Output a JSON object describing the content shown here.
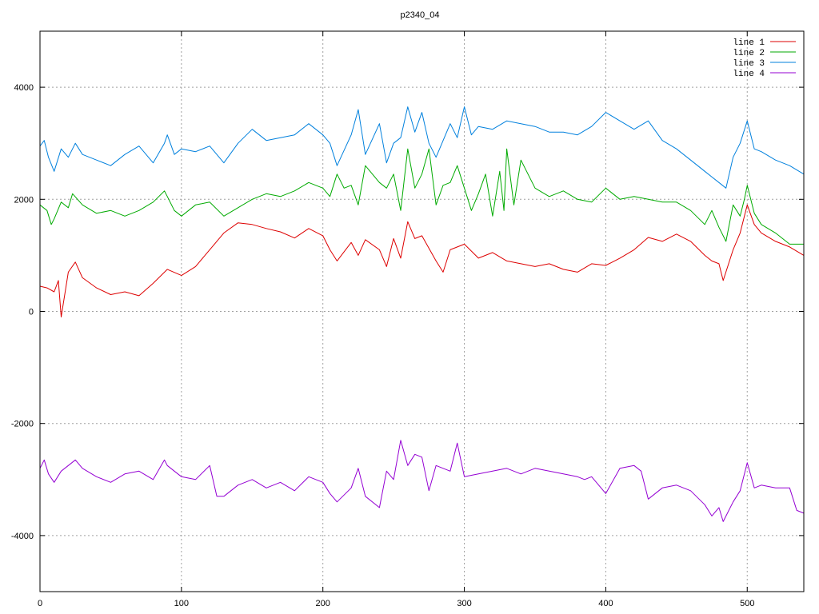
{
  "chart_data": {
    "type": "line",
    "title": "p2340_04",
    "xlabel": "",
    "ylabel": "",
    "xlim": [
      0,
      540
    ],
    "ylim": [
      -5000,
      5000
    ],
    "x_ticks": [
      0,
      100,
      200,
      300,
      400,
      500
    ],
    "y_ticks": [
      -4000,
      -2000,
      0,
      2000,
      4000
    ],
    "grid": true,
    "legend_position": "top-right",
    "series": [
      {
        "name": "line 1",
        "color": "#dd0000",
        "x": [
          0,
          5,
          10,
          13,
          15,
          20,
          25,
          30,
          40,
          50,
          60,
          70,
          80,
          90,
          100,
          110,
          120,
          130,
          140,
          150,
          160,
          170,
          180,
          190,
          200,
          205,
          210,
          220,
          225,
          230,
          240,
          245,
          250,
          255,
          260,
          265,
          270,
          280,
          285,
          290,
          300,
          310,
          320,
          330,
          340,
          350,
          360,
          370,
          380,
          390,
          400,
          410,
          420,
          430,
          440,
          450,
          460,
          470,
          475,
          480,
          483,
          490,
          495,
          500,
          505,
          510,
          520,
          530,
          540
        ],
        "values": [
          450,
          420,
          350,
          550,
          -100,
          700,
          880,
          600,
          420,
          300,
          350,
          280,
          500,
          750,
          640,
          800,
          1100,
          1400,
          1580,
          1550,
          1480,
          1420,
          1310,
          1480,
          1350,
          1100,
          900,
          1230,
          1000,
          1280,
          1100,
          800,
          1300,
          950,
          1600,
          1300,
          1350,
          900,
          700,
          1100,
          1200,
          950,
          1050,
          900,
          850,
          800,
          850,
          750,
          700,
          850,
          820,
          950,
          1100,
          1320,
          1250,
          1380,
          1250,
          1000,
          900,
          850,
          550,
          1100,
          1400,
          1900,
          1550,
          1400,
          1250,
          1150,
          1000
        ]
      },
      {
        "name": "line 2",
        "color": "#00aa00",
        "x": [
          0,
          5,
          8,
          10,
          15,
          20,
          23,
          30,
          40,
          50,
          60,
          70,
          80,
          88,
          90,
          95,
          100,
          110,
          120,
          130,
          140,
          150,
          160,
          170,
          180,
          190,
          200,
          205,
          210,
          215,
          220,
          225,
          230,
          240,
          245,
          250,
          255,
          260,
          265,
          270,
          275,
          280,
          285,
          290,
          295,
          300,
          305,
          310,
          315,
          320,
          325,
          328,
          330,
          335,
          340,
          350,
          360,
          370,
          380,
          390,
          400,
          410,
          420,
          430,
          440,
          450,
          460,
          470,
          475,
          480,
          485,
          490,
          495,
          498,
          500,
          505,
          510,
          520,
          530,
          540
        ],
        "values": [
          1900,
          1800,
          1550,
          1650,
          1950,
          1850,
          2100,
          1900,
          1750,
          1800,
          1700,
          1800,
          1950,
          2150,
          2050,
          1800,
          1700,
          1900,
          1950,
          1700,
          1850,
          2000,
          2100,
          2050,
          2150,
          2300,
          2200,
          2050,
          2450,
          2200,
          2250,
          1900,
          2600,
          2300,
          2200,
          2450,
          1800,
          2900,
          2200,
          2450,
          2900,
          1900,
          2250,
          2300,
          2600,
          2200,
          1800,
          2100,
          2450,
          1700,
          2500,
          1800,
          2900,
          1900,
          2700,
          2200,
          2050,
          2150,
          2000,
          1950,
          2200,
          2000,
          2050,
          2000,
          1950,
          1950,
          1800,
          1550,
          1800,
          1500,
          1250,
          1900,
          1700,
          2000,
          2250,
          1750,
          1550,
          1400,
          1200,
          1200
        ]
      },
      {
        "name": "line 3",
        "color": "#0080dd",
        "x": [
          0,
          3,
          6,
          10,
          15,
          20,
          25,
          30,
          40,
          50,
          60,
          70,
          80,
          88,
          90,
          95,
          100,
          110,
          120,
          130,
          140,
          150,
          160,
          170,
          180,
          190,
          200,
          205,
          210,
          220,
          225,
          230,
          240,
          245,
          250,
          255,
          260,
          265,
          270,
          275,
          280,
          290,
          295,
          300,
          305,
          310,
          320,
          330,
          340,
          350,
          360,
          370,
          380,
          390,
          400,
          410,
          420,
          430,
          440,
          450,
          460,
          470,
          480,
          485,
          490,
          495,
          500,
          505,
          510,
          520,
          530,
          540
        ],
        "values": [
          2950,
          3050,
          2750,
          2500,
          2900,
          2750,
          3000,
          2800,
          2700,
          2600,
          2800,
          2950,
          2650,
          3000,
          3150,
          2800,
          2900,
          2850,
          2950,
          2650,
          3000,
          3250,
          3050,
          3100,
          3150,
          3350,
          3150,
          3000,
          2600,
          3150,
          3600,
          2800,
          3350,
          2650,
          3000,
          3100,
          3650,
          3200,
          3550,
          3000,
          2750,
          3350,
          3100,
          3650,
          3150,
          3300,
          3250,
          3400,
          3350,
          3300,
          3200,
          3200,
          3150,
          3300,
          3550,
          3400,
          3250,
          3400,
          3050,
          2900,
          2700,
          2500,
          2300,
          2200,
          2750,
          3000,
          3400,
          2900,
          2850,
          2700,
          2600,
          2450
        ]
      },
      {
        "name": "line 4",
        "color": "#9400d3",
        "x": [
          0,
          3,
          6,
          10,
          15,
          20,
          25,
          30,
          40,
          50,
          60,
          70,
          80,
          88,
          90,
          95,
          100,
          110,
          120,
          125,
          130,
          140,
          150,
          160,
          170,
          180,
          190,
          200,
          205,
          210,
          220,
          225,
          230,
          240,
          245,
          250,
          255,
          260,
          265,
          270,
          275,
          280,
          290,
          295,
          300,
          310,
          320,
          330,
          340,
          350,
          360,
          370,
          380,
          385,
          390,
          400,
          410,
          420,
          425,
          430,
          440,
          450,
          460,
          470,
          475,
          480,
          483,
          490,
          495,
          500,
          505,
          510,
          520,
          530,
          535,
          540
        ],
        "values": [
          -2800,
          -2650,
          -2900,
          -3050,
          -2850,
          -2750,
          -2650,
          -2800,
          -2950,
          -3050,
          -2900,
          -2850,
          -3000,
          -2650,
          -2750,
          -2850,
          -2950,
          -3000,
          -2750,
          -3300,
          -3300,
          -3100,
          -3000,
          -3150,
          -3050,
          -3200,
          -2950,
          -3050,
          -3250,
          -3400,
          -3150,
          -2800,
          -3300,
          -3500,
          -2850,
          -3000,
          -2300,
          -2750,
          -2550,
          -2600,
          -3200,
          -2750,
          -2850,
          -2350,
          -2950,
          -2900,
          -2850,
          -2800,
          -2900,
          -2800,
          -2850,
          -2900,
          -2950,
          -3000,
          -2950,
          -3250,
          -2800,
          -2750,
          -2850,
          -3350,
          -3150,
          -3100,
          -3200,
          -3450,
          -3650,
          -3500,
          -3750,
          -3400,
          -3200,
          -2700,
          -3150,
          -3100,
          -3150,
          -3150,
          -3550,
          -3600
        ]
      }
    ]
  }
}
